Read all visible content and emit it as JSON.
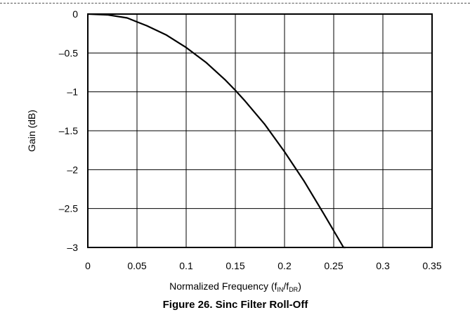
{
  "chart_data": {
    "type": "line",
    "caption": "Figure 26. Sinc Filter Roll-Off",
    "xlabel": {
      "main": "Normalized Frequency (f",
      "sub1": "IN",
      "mid": "/f",
      "sub2": "DR",
      "end": ")"
    },
    "ylabel": "Gain (dB)",
    "xlim": [
      0,
      0.35
    ],
    "ylim": [
      -3,
      0
    ],
    "xticks": [
      0,
      0.05,
      0.1,
      0.15,
      0.2,
      0.25,
      0.3,
      0.35
    ],
    "xtick_labels": [
      "0",
      "0.05",
      "0.1",
      "0.15",
      "0.2",
      "0.25",
      "0.3",
      "0.35"
    ],
    "yticks": [
      0,
      -0.5,
      -1,
      -1.5,
      -2,
      -2.5,
      -3
    ],
    "ytick_labels": [
      "0",
      "–0.5",
      "–1",
      "–1.5",
      "–2",
      "–2.5",
      "–3"
    ],
    "grid": true,
    "series": [
      {
        "color": "#000000",
        "x": [
          0,
          0.02,
          0.04,
          0.05,
          0.06,
          0.08,
          0.1,
          0.12,
          0.14,
          0.15,
          0.16,
          0.18,
          0.2,
          0.22,
          0.24,
          0.26,
          0.262
        ],
        "y": [
          0,
          -0.01,
          -0.05,
          -0.1,
          -0.15,
          -0.27,
          -0.43,
          -0.62,
          -0.85,
          -0.98,
          -1.12,
          -1.42,
          -1.77,
          -2.15,
          -2.57,
          -3.0,
          -3.0
        ]
      }
    ]
  }
}
